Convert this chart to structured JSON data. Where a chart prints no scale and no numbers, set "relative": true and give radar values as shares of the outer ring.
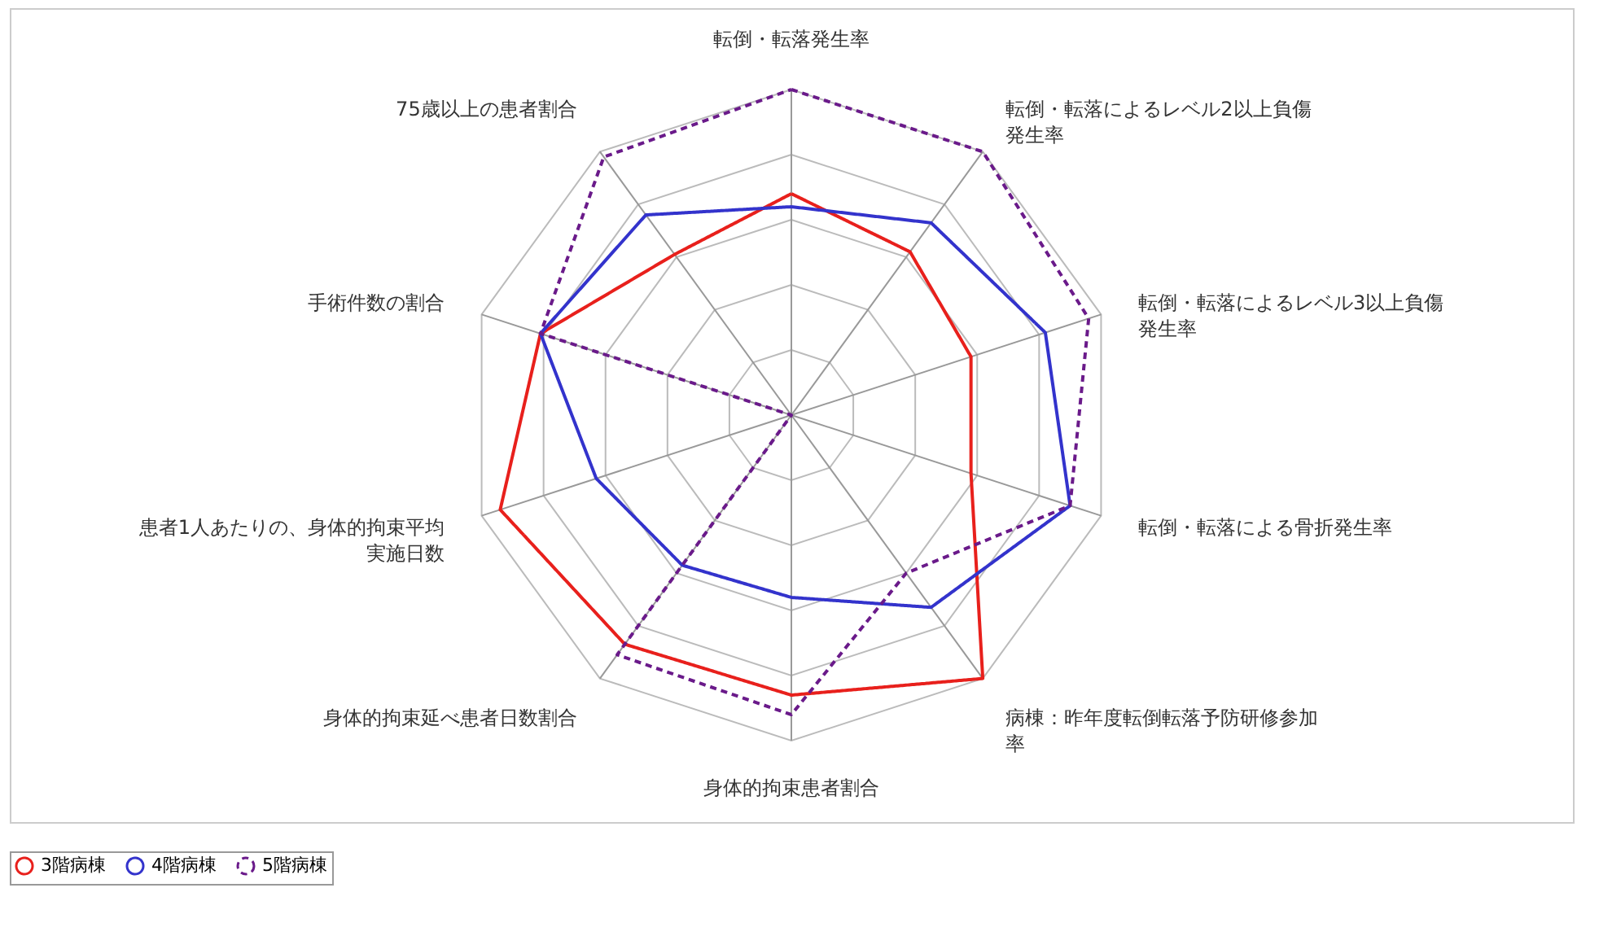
{
  "chart_data": {
    "type": "radar",
    "relative": true,
    "grid": true,
    "legend": "bottom",
    "marker": "none",
    "categories": [
      "転倒・転落発生率",
      "転倒・転落によるレベル2以上負傷発生率",
      "転倒・転落によるレベル3以上負傷発生率",
      "転倒・転落による骨折発生率",
      "病棟：昨年度転倒転落予防研修参加率",
      "身体的拘束患者割合",
      "身体的拘束延べ患者日数割合",
      "患者1人あたりの、身体的拘束平均実施日数",
      "手術件数の割合",
      "75歳以上の患者割合"
    ],
    "series": [
      {
        "name": "3階病棟",
        "color": "#e8201c",
        "line_style": "solid",
        "values": [
          0.68,
          0.62,
          0.58,
          0.58,
          1.0,
          0.86,
          0.87,
          0.94,
          0.81,
          0.61
        ]
      },
      {
        "name": "4階病棟",
        "color": "#3333cc",
        "line_style": "solid",
        "values": [
          0.64,
          0.73,
          0.82,
          0.9,
          0.73,
          0.56,
          0.57,
          0.63,
          0.81,
          0.76
        ]
      },
      {
        "name": "5階病棟",
        "color": "#6a1a8a",
        "line_style": "dashed",
        "values": [
          1.0,
          1.0,
          0.96,
          0.9,
          0.6,
          0.92,
          0.91,
          0,
          0.81,
          0.98
        ]
      }
    ]
  }
}
